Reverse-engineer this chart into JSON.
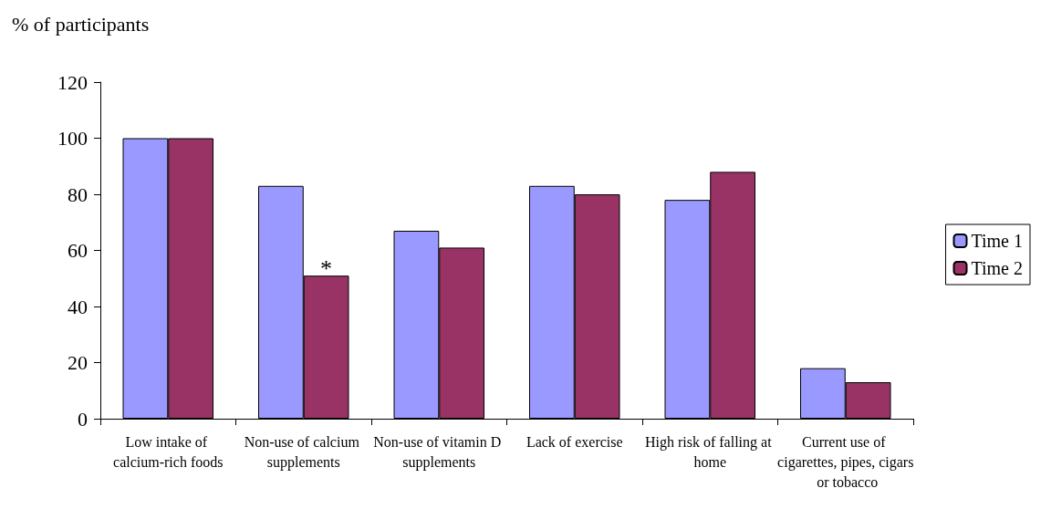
{
  "chart_data": {
    "type": "bar",
    "ylabel": "% of participants",
    "categories": [
      "Low intake of calcium-rich foods",
      "Non-use of calcium supplements",
      "Non-use of vitamin D supplements",
      "Lack of exercise",
      "High risk of falling at home",
      "Current use of cigarettes, pipes, cigars or tobacco"
    ],
    "series": [
      {
        "name": "Time 1",
        "color": "#9999ff",
        "values": [
          100,
          83,
          67,
          83,
          78,
          18
        ]
      },
      {
        "name": "Time 2",
        "color": "#993366",
        "values": [
          100,
          51,
          61,
          80,
          88,
          13
        ]
      }
    ],
    "ylim": [
      0,
      120
    ],
    "yticks": [
      0,
      20,
      40,
      60,
      80,
      100,
      120
    ],
    "grid": false,
    "legend": "right",
    "annotations": [
      {
        "text": "*",
        "x": "Non-use of calcium supplements",
        "y": 51
      }
    ]
  }
}
